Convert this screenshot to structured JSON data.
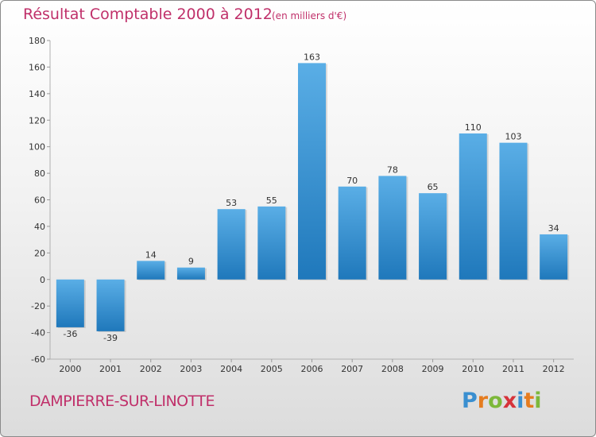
{
  "header": {
    "title": "Résultat Comptable 2000 à 2012",
    "subtitle": "(en milliers d'€)"
  },
  "footer": {
    "city": "DAMPIERRE-SUR-LINOTTE",
    "logo_text": "Proxiti"
  },
  "colors": {
    "title": "#c0306a",
    "bar_top": "#5aaee6",
    "bar_bottom": "#1f78bb",
    "logo": [
      "#3a8fd0",
      "#e57c1f",
      "#7db83a",
      "#d6333a",
      "#3a8fd0",
      "#e57c1f",
      "#7db83a"
    ]
  },
  "chart_data": {
    "type": "bar",
    "title": "Résultat Comptable 2000 à 2012",
    "subtitle": "(en milliers d'€)",
    "xlabel": "",
    "ylabel": "",
    "categories": [
      "2000",
      "2001",
      "2002",
      "2003",
      "2004",
      "2005",
      "2006",
      "2007",
      "2008",
      "2009",
      "2010",
      "2011",
      "2012"
    ],
    "values": [
      -36,
      -39,
      14,
      9,
      53,
      55,
      163,
      70,
      78,
      65,
      110,
      103,
      34
    ],
    "ylim": [
      -60,
      180
    ],
    "yticks": [
      -60,
      -40,
      -20,
      0,
      20,
      40,
      60,
      80,
      100,
      120,
      140,
      160,
      180
    ],
    "grid": false,
    "data_labels": true
  }
}
